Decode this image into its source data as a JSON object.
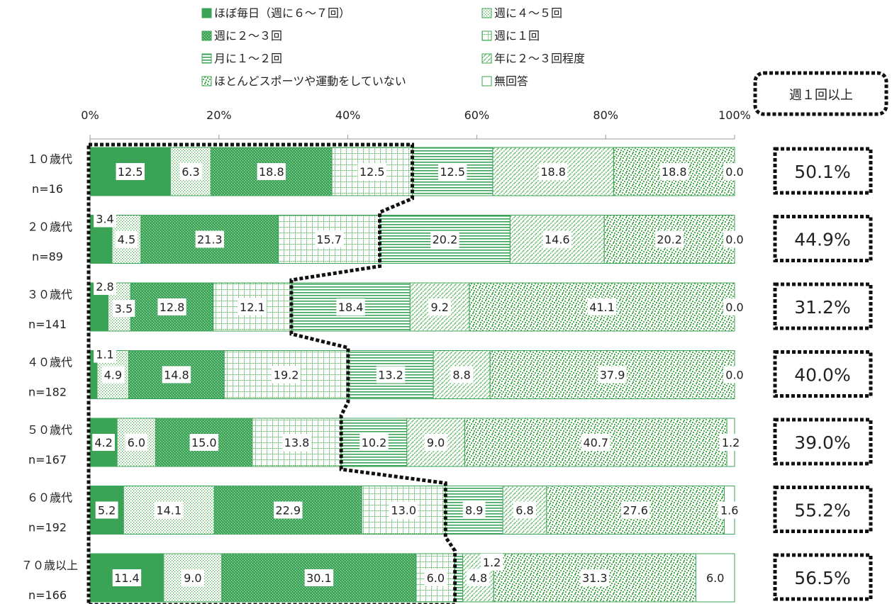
{
  "chart_data": {
    "type": "bar",
    "orientation": "horizontal",
    "stacked": true,
    "percent_axis": true,
    "xlim": [
      0,
      100
    ],
    "ticks": [
      "0%",
      "20%",
      "40%",
      "60%",
      "80%",
      "100%"
    ],
    "legend_position": "top",
    "categories": [
      {
        "label": "１０歳代",
        "n": "n=16"
      },
      {
        "label": "２０歳代",
        "n": "n=89"
      },
      {
        "label": "３０歳代",
        "n": "n=141"
      },
      {
        "label": "４０歳代",
        "n": "n=182"
      },
      {
        "label": "５０歳代",
        "n": "n=167"
      },
      {
        "label": "６０歳代",
        "n": "n=192"
      },
      {
        "label": "７０歳以上",
        "n": "n=166"
      }
    ],
    "series": [
      {
        "name": "ほぼ毎日（週に６～７回）",
        "pattern": "solid",
        "values": [
          12.5,
          3.4,
          2.8,
          1.1,
          4.2,
          5.2,
          11.4
        ]
      },
      {
        "name": "週に４～５回",
        "pattern": "fine-dots",
        "values": [
          6.3,
          4.5,
          3.5,
          4.9,
          6.0,
          14.1,
          9.0
        ]
      },
      {
        "name": "週に２～３回",
        "pattern": "dense-dots",
        "values": [
          18.8,
          21.3,
          12.8,
          14.8,
          15.0,
          22.9,
          30.1
        ]
      },
      {
        "name": "週に１回",
        "pattern": "grid",
        "values": [
          12.5,
          15.7,
          12.1,
          19.2,
          13.8,
          13.0,
          6.0
        ]
      },
      {
        "name": "月に１～２回",
        "pattern": "horizontal-lines",
        "values": [
          12.5,
          20.2,
          18.4,
          13.2,
          10.2,
          8.9,
          1.2
        ]
      },
      {
        "name": "年に２～３回程度",
        "pattern": "diagonal",
        "values": [
          18.8,
          14.6,
          9.2,
          8.8,
          9.0,
          6.8,
          4.8
        ]
      },
      {
        "name": "ほとんどスポーツや運動をしていない",
        "pattern": "confetti",
        "values": [
          18.8,
          20.2,
          41.1,
          37.9,
          40.7,
          27.6,
          31.3
        ]
      },
      {
        "name": "無回答",
        "pattern": "none",
        "values": [
          0.0,
          0.0,
          0.0,
          0.0,
          1.2,
          1.6,
          6.0
        ]
      }
    ],
    "summary_title": "週１回以上",
    "summary_values": [
      "50.1%",
      "44.9%",
      "31.2%",
      "40.0%",
      "39.0%",
      "55.2%",
      "56.5%"
    ]
  },
  "colors": {
    "green": "#3aa356",
    "dot_green": "#4caf50",
    "border": "#3aa356",
    "frame": "#111111"
  }
}
